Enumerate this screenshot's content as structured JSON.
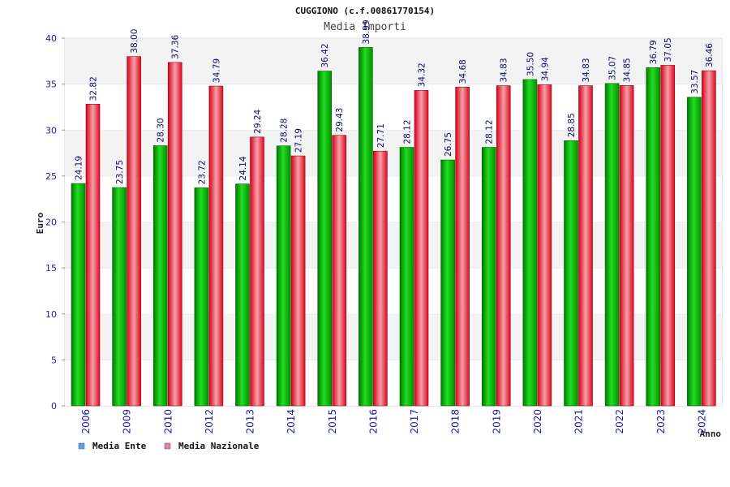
{
  "chart_data": {
    "type": "bar",
    "title": "CUGGIONO (c.f.00861770154)",
    "subtitle": "Media Importi",
    "xlabel": "Anno",
    "ylabel": "Euro",
    "ylim": [
      0,
      40
    ],
    "yticks": [
      0,
      5,
      10,
      15,
      20,
      25,
      30,
      35,
      40
    ],
    "grid": true,
    "legend_position": "bottom-left",
    "categories": [
      "2006",
      "2009",
      "2010",
      "2012",
      "2013",
      "2014",
      "2015",
      "2016",
      "2017",
      "2018",
      "2019",
      "2020",
      "2021",
      "2022",
      "2023",
      "2024"
    ],
    "series": [
      {
        "name": "Media Ente",
        "color": "#00b000",
        "legend_color": "#5aa0e8",
        "values": [
          24.19,
          23.75,
          28.3,
          23.72,
          24.14,
          28.28,
          36.42,
          38.99,
          28.12,
          26.75,
          28.12,
          35.5,
          28.85,
          35.07,
          36.79,
          33.57
        ],
        "labels": [
          "24.19",
          "23.75",
          "28.30",
          "23.72",
          "24.14",
          "28.28",
          "36.42",
          "38.99",
          "28.12",
          "26.75",
          "28.12",
          "35.50",
          "28.85",
          "35.07",
          "36.79",
          "33.57"
        ]
      },
      {
        "name": "Media Nazionale",
        "color": "#e01020",
        "legend_color": "#e080b0",
        "values": [
          32.82,
          38.0,
          37.36,
          34.79,
          29.24,
          27.19,
          29.43,
          27.71,
          34.32,
          34.68,
          34.83,
          34.94,
          34.83,
          34.85,
          37.05,
          36.46
        ],
        "labels": [
          "32.82",
          "38.00",
          "37.36",
          "34.79",
          "29.24",
          "27.19",
          "29.43",
          "27.71",
          "34.32",
          "34.68",
          "34.83",
          "34.94",
          "34.83",
          "34.85",
          "37.05",
          "36.46"
        ]
      }
    ]
  }
}
